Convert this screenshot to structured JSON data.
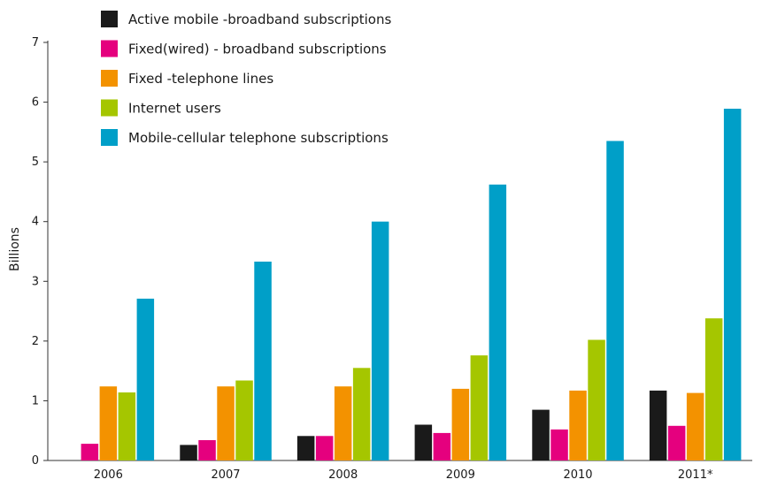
{
  "chart_data": {
    "type": "bar",
    "title": "",
    "xlabel": "",
    "ylabel": "Billions",
    "ylim": [
      0,
      7
    ],
    "yticks": [
      0,
      1,
      2,
      3,
      4,
      5,
      6,
      7
    ],
    "grid": false,
    "legend_position": "top-left",
    "categories": [
      "2006",
      "2007",
      "2008",
      "2009",
      "2010",
      "2011*"
    ],
    "series": [
      {
        "name": "Active mobile -broadband subscriptions",
        "color": "#1a1a1a",
        "values": [
          null,
          0.26,
          0.41,
          0.6,
          0.85,
          1.17
        ]
      },
      {
        "name": "Fixed(wired) - broadband subscriptions",
        "color": "#e5007e",
        "values": [
          0.28,
          0.34,
          0.41,
          0.46,
          0.52,
          0.58
        ]
      },
      {
        "name": "Fixed -telephone lines",
        "color": "#f39200",
        "values": [
          1.24,
          1.24,
          1.24,
          1.2,
          1.17,
          1.13
        ]
      },
      {
        "name": "Internet users",
        "color": "#a5c600",
        "values": [
          1.14,
          1.34,
          1.55,
          1.76,
          2.02,
          2.38
        ]
      },
      {
        "name": "Mobile-cellular telephone subscriptions",
        "color": "#009fc8",
        "values": [
          2.71,
          3.33,
          4.0,
          4.62,
          5.35,
          5.89
        ]
      }
    ]
  }
}
